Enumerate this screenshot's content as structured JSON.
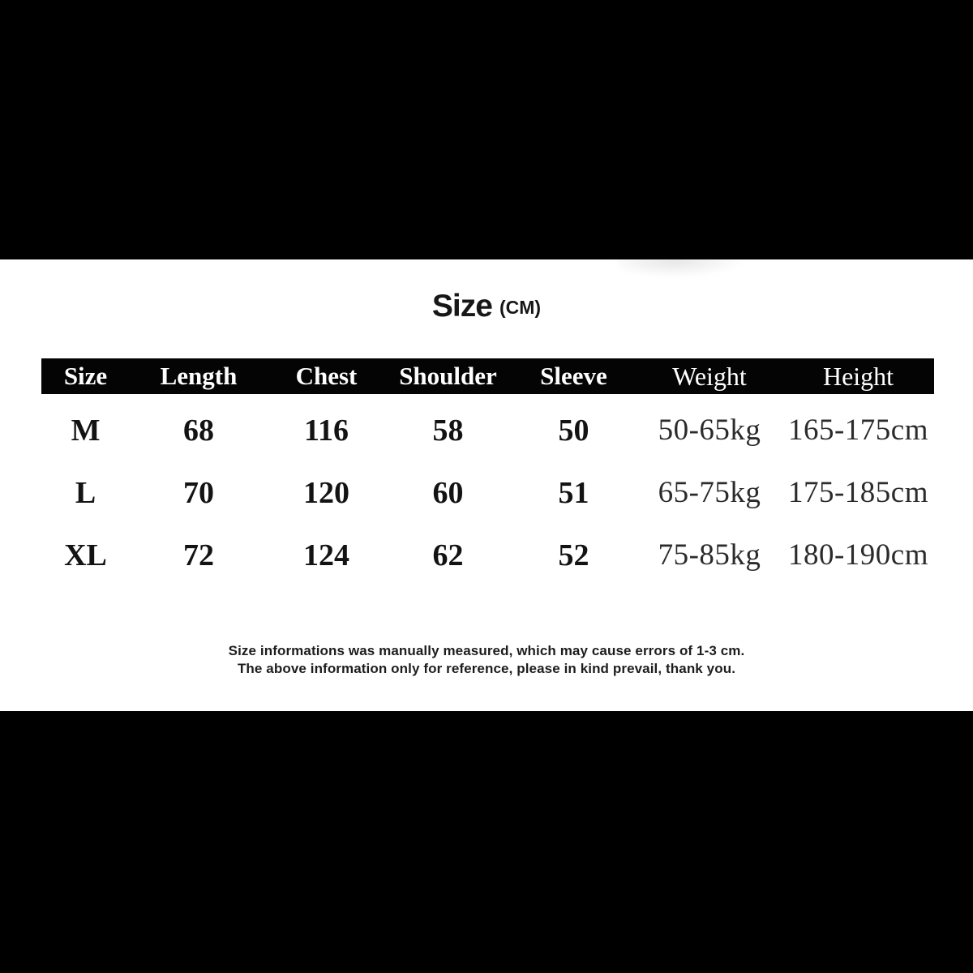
{
  "title": {
    "main": "Size",
    "unit": "(CM)"
  },
  "table": {
    "headers": {
      "size": "Size",
      "length": "Length",
      "chest": "Chest",
      "shoulder": "Shoulder",
      "sleeve": "Sleeve",
      "weight": "Weight",
      "height": "Height"
    },
    "rows": [
      {
        "size": "M",
        "length": "68",
        "chest": "116",
        "shoulder": "58",
        "sleeve": "50",
        "weight": "50-65kg",
        "height": "165-175cm"
      },
      {
        "size": "L",
        "length": "70",
        "chest": "120",
        "shoulder": "60",
        "sleeve": "51",
        "weight": "65-75kg",
        "height": "175-185cm"
      },
      {
        "size": "XL",
        "length": "72",
        "chest": "124",
        "shoulder": "62",
        "sleeve": "52",
        "weight": "75-85kg",
        "height": "180-190cm"
      }
    ]
  },
  "footnote": {
    "line1": "Size informations was manually measured, which may cause errors of 1-3 cm.",
    "line2": "The above information only for reference, please in kind prevail, thank you."
  },
  "colors": {
    "letterbox": "#000000",
    "header_band": "#040404",
    "page_background": "#ffffff",
    "header_text": "#ffffff",
    "body_text": "#131313"
  }
}
